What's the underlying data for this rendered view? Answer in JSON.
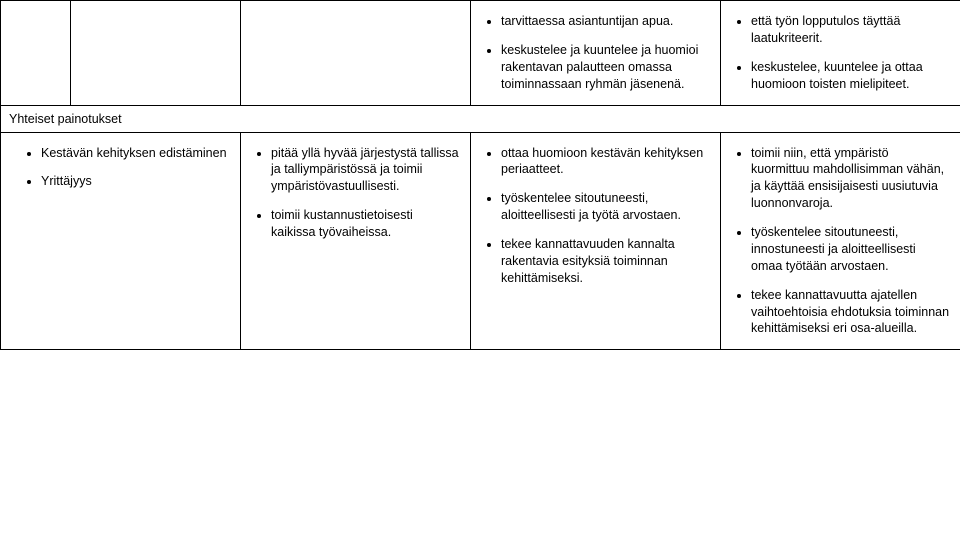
{
  "top": {
    "c1_items": [
      "tarvittaessa asiantuntijan apua.",
      "keskustelee ja kuuntelee ja huomioi rakentavan palautteen omassa toiminnassaan ryhmän jäsenenä."
    ],
    "c2_items": [
      "että työn lopputulos täyttää laatukriteerit.",
      "keskustelee, kuuntelee ja ottaa huomioon toisten mielipiteet."
    ]
  },
  "section_title": "Yhteiset painotukset",
  "bottom": {
    "left_items": [
      "Kestävän kehityksen edistäminen",
      "Yrittäjyys"
    ],
    "col_c_items": [
      "pitää yllä hyvää järjestystä tallissa ja talliympäristössä ja toimii ympäristövastuullisesti.",
      "toimii kustannustietoisesti kaikissa työvaiheissa."
    ],
    "col_d_items": [
      "ottaa huomioon kestävän kehityksen periaatteet.",
      "työskentelee sitoutuneesti, aloitteellisesti ja työtä arvostaen.",
      "tekee kannattavuuden kannalta rakentavia esityksiä toiminnan kehittämiseksi."
    ],
    "col_e_items": [
      "toimii niin, että ympäristö kuormittuu mahdollisimman vähän, ja käyttää ensisijaisesti uusiutuvia luonnonvaroja.",
      "työskentelee sitoutuneesti, innostuneesti ja aloitteellisesti omaa työtään arvostaen.",
      "tekee kannattavuutta ajatellen vaihtoehtoisia ehdotuksia toiminnan kehittämiseksi eri osa-alueilla."
    ]
  }
}
